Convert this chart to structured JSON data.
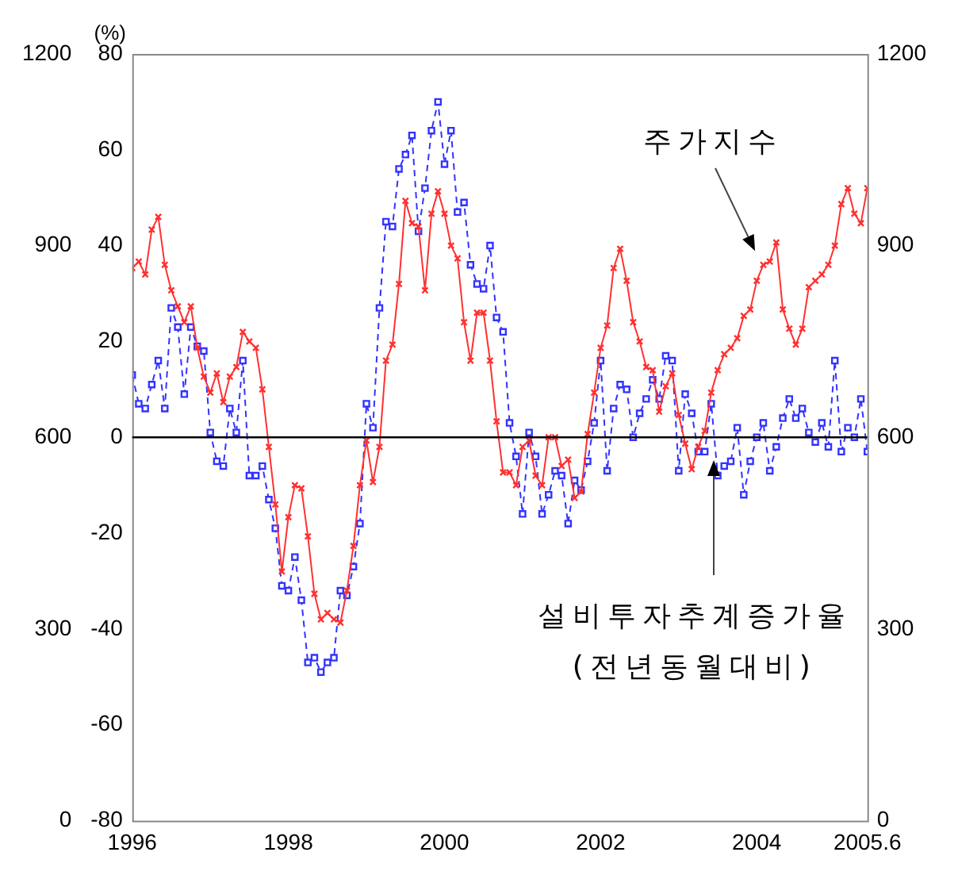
{
  "chart_data": {
    "type": "line",
    "ylabel": "(%)",
    "x": [
      "1996-01",
      "1996-02",
      "1996-03",
      "1996-04",
      "1996-05",
      "1996-06",
      "1996-07",
      "1996-08",
      "1996-09",
      "1996-10",
      "1996-11",
      "1996-12",
      "1997-01",
      "1997-02",
      "1997-03",
      "1997-04",
      "1997-05",
      "1997-06",
      "1997-07",
      "1997-08",
      "1997-09",
      "1997-10",
      "1997-11",
      "1997-12",
      "1998-01",
      "1998-02",
      "1998-03",
      "1998-04",
      "1998-05",
      "1998-06",
      "1998-07",
      "1998-08",
      "1998-09",
      "1998-10",
      "1998-11",
      "1998-12",
      "1999-01",
      "1999-02",
      "1999-03",
      "1999-04",
      "1999-05",
      "1999-06",
      "1999-07",
      "1999-08",
      "1999-09",
      "1999-10",
      "1999-11",
      "1999-12",
      "2000-01",
      "2000-02",
      "2000-03",
      "2000-04",
      "2000-05",
      "2000-06",
      "2000-07",
      "2000-08",
      "2000-09",
      "2000-10",
      "2000-11",
      "2000-12",
      "2001-01",
      "2001-02",
      "2001-03",
      "2001-04",
      "2001-05",
      "2001-06",
      "2001-07",
      "2001-08",
      "2001-09",
      "2001-10",
      "2001-11",
      "2001-12",
      "2002-01",
      "2002-02",
      "2002-03",
      "2002-04",
      "2002-05",
      "2002-06",
      "2002-07",
      "2002-08",
      "2002-09",
      "2002-10",
      "2002-11",
      "2002-12",
      "2003-01",
      "2003-02",
      "2003-03",
      "2003-04",
      "2003-05",
      "2003-06",
      "2003-07",
      "2003-08",
      "2003-09",
      "2003-10",
      "2003-11",
      "2003-12",
      "2004-01",
      "2004-02",
      "2004-03",
      "2004-04",
      "2004-05",
      "2004-06",
      "2004-07",
      "2004-08",
      "2004-09",
      "2004-10",
      "2004-11",
      "2004-12",
      "2005-01",
      "2005-02",
      "2005-03",
      "2005-04",
      "2005-05",
      "2005-06"
    ],
    "series": [
      {
        "name": "주가지수",
        "color": "#ff3030",
        "axis": "y2",
        "marker": "cross",
        "line_style": "solid",
        "values": [
          865,
          875,
          855,
          925,
          945,
          870,
          830,
          805,
          780,
          805,
          740,
          695,
          670,
          700,
          655,
          695,
          710,
          765,
          750,
          740,
          675,
          585,
          495,
          390,
          475,
          525,
          520,
          445,
          355,
          315,
          325,
          315,
          310,
          360,
          430,
          525,
          595,
          530,
          585,
          720,
          745,
          840,
          970,
          935,
          930,
          830,
          950,
          985,
          950,
          900,
          880,
          780,
          720,
          795,
          795,
          720,
          625,
          545,
          545,
          525,
          585,
          595,
          540,
          525,
          600,
          600,
          555,
          565,
          505,
          515,
          605,
          670,
          740,
          775,
          865,
          895,
          845,
          780,
          750,
          710,
          705,
          640,
          680,
          700,
          635,
          590,
          550,
          585,
          610,
          670,
          705,
          730,
          740,
          755,
          790,
          800,
          845,
          870,
          875,
          905,
          800,
          770,
          745,
          770,
          835,
          845,
          855,
          870,
          900,
          965,
          990,
          950,
          935,
          990
        ]
      },
      {
        "name": "설비투자추계증가율\n(전년동월대비)",
        "color": "#3333ff",
        "axis": "y",
        "marker": "square",
        "line_style": "dashed",
        "values": [
          13,
          7,
          6,
          11,
          16,
          6,
          27,
          23,
          9,
          23,
          19,
          18,
          1,
          -5,
          -6,
          6,
          1,
          16,
          -8,
          -8,
          -6,
          -13,
          -19,
          -31,
          -32,
          -25,
          -34,
          -47,
          -46,
          -49,
          -47,
          -46,
          -32,
          -33,
          -27,
          -18,
          7,
          2,
          27,
          45,
          44,
          56,
          59,
          63,
          43,
          52,
          64,
          70,
          57,
          64,
          47,
          49,
          36,
          32,
          31,
          40,
          25,
          22,
          3,
          -4,
          -16,
          1,
          -4,
          -16,
          -12,
          -7,
          -8,
          -18,
          -9,
          -11,
          -5,
          3,
          16,
          -7,
          6,
          11,
          10,
          0,
          5,
          8,
          12,
          8,
          17,
          16,
          -7,
          9,
          5,
          -3,
          -3,
          7,
          -8,
          -6,
          -5,
          2,
          -12,
          -5,
          0,
          3,
          -7,
          -2,
          4,
          8,
          4,
          6,
          1,
          -1,
          3,
          -2,
          16,
          -3,
          2,
          0,
          8,
          -3
        ]
      }
    ],
    "xlim": [
      "1996-01",
      "2005-06"
    ],
    "xticks": [
      "1996",
      "1998",
      "2000",
      "2002",
      "2004",
      {
        "value": "2005-06",
        "label": "2005.6"
      }
    ],
    "ylim": [
      -80,
      80
    ],
    "yticks": [
      -80,
      -60,
      -40,
      -20,
      0,
      20,
      40,
      60,
      80
    ],
    "y2lim": [
      0,
      1200
    ],
    "y2ticks": [
      0,
      300,
      600,
      900,
      1200
    ],
    "y3lim": [
      0,
      1200
    ],
    "y3ticks": [
      0,
      300,
      600,
      900,
      1200
    ],
    "ref_lines": [
      {
        "axis": "y",
        "value": 0,
        "color": "#000000",
        "line_style": "solid"
      }
    ],
    "grid": false,
    "legend": false
  }
}
